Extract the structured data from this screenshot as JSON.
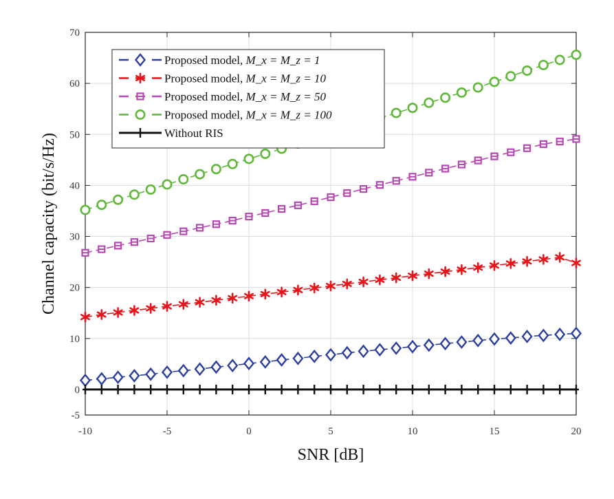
{
  "chart_data": {
    "type": "line",
    "title": "",
    "xlabel": "SNR [dB]",
    "ylabel": "Channel capacity (bit/s/Hz)",
    "xlim": [
      -10,
      20
    ],
    "ylim": [
      -5,
      70
    ],
    "xticks": [
      -10,
      -5,
      0,
      5,
      10,
      15,
      20
    ],
    "yticks": [
      -5,
      0,
      10,
      20,
      30,
      40,
      50,
      60,
      70
    ],
    "grid": true,
    "legend_position": "top-left",
    "x": {
      "start": -10,
      "end": 20,
      "count": 31
    },
    "series": [
      {
        "name": "Proposed model, M_x = M_z = 1",
        "legend_prefix": "Proposed model, ",
        "legend_math": "M_x = M_z = 1",
        "marker": "diamond",
        "color": "#2c3fa0",
        "values": [
          1.8,
          2.1,
          2.4,
          2.7,
          3.0,
          3.4,
          3.7,
          4.0,
          4.4,
          4.7,
          5.1,
          5.4,
          5.8,
          6.1,
          6.5,
          6.8,
          7.2,
          7.5,
          7.8,
          8.1,
          8.4,
          8.7,
          9.0,
          9.3,
          9.6,
          9.9,
          10.1,
          10.4,
          10.6,
          10.8,
          11.0
        ]
      },
      {
        "name": "Proposed model, M_x = M_z = 10",
        "legend_prefix": "Proposed model, ",
        "legend_math": "M_x = M_z = 10",
        "marker": "asterisk",
        "color": "#e8141a",
        "values": [
          14.2,
          14.7,
          15.1,
          15.5,
          15.9,
          16.3,
          16.7,
          17.1,
          17.5,
          17.9,
          18.3,
          18.7,
          19.1,
          19.5,
          19.9,
          20.3,
          20.7,
          21.1,
          21.5,
          21.9,
          22.3,
          22.7,
          23.1,
          23.5,
          23.9,
          24.3,
          24.7,
          25.1,
          25.5,
          25.9,
          24.8
        ]
      },
      {
        "name": "Proposed model, M_x = M_z = 50",
        "legend_prefix": "Proposed model, ",
        "legend_math": "M_x = M_z = 50",
        "marker": "square",
        "color": "#b548b1",
        "values": [
          26.8,
          27.5,
          28.2,
          28.9,
          29.6,
          30.3,
          31.0,
          31.7,
          32.4,
          33.1,
          33.9,
          34.6,
          35.4,
          36.1,
          36.9,
          37.7,
          38.5,
          39.3,
          40.1,
          40.9,
          41.7,
          42.5,
          43.3,
          44.1,
          44.9,
          45.7,
          46.5,
          47.3,
          48.1,
          48.6,
          49.1
        ]
      },
      {
        "name": "Proposed model, M_x = M_z = 100",
        "legend_prefix": "Proposed model, ",
        "legend_math": "M_x = M_z = 100",
        "marker": "circle",
        "color": "#5fb83a",
        "values": [
          35.2,
          36.2,
          37.2,
          38.2,
          39.2,
          40.2,
          41.2,
          42.2,
          43.2,
          44.2,
          45.2,
          46.2,
          47.2,
          48.2,
          49.2,
          50.2,
          51.2,
          52.2,
          53.2,
          54.2,
          55.2,
          56.2,
          57.2,
          58.2,
          59.2,
          60.3,
          61.4,
          62.5,
          63.6,
          64.6,
          65.6
        ]
      },
      {
        "name": "Without RIS",
        "legend_prefix": "Without RIS",
        "legend_math": "",
        "marker": "plus",
        "color": "#111111",
        "values": [
          0,
          0,
          0,
          0,
          0,
          0,
          0,
          0,
          0,
          0,
          0,
          0,
          0,
          0,
          0,
          0,
          0,
          0,
          0,
          0,
          0,
          0,
          0,
          0,
          0,
          0,
          0,
          0,
          0,
          0,
          0
        ]
      }
    ]
  }
}
